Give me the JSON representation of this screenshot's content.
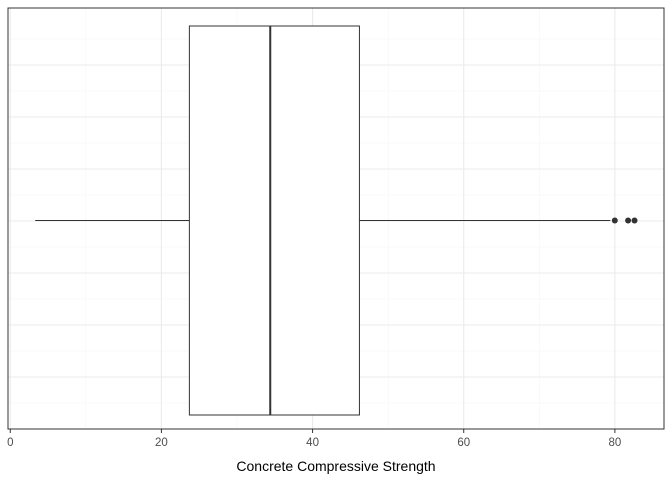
{
  "chart_data": {
    "type": "boxplot",
    "orientation": "horizontal",
    "title": "",
    "xlabel": "Concrete Compressive Strength",
    "ylabel": "",
    "xlim": [
      -0.3,
      86.5
    ],
    "x_ticks": [
      0,
      20,
      40,
      60,
      80
    ],
    "x_tick_labels": [
      "0",
      "20",
      "40",
      "60",
      "80"
    ],
    "grid": true,
    "legend": "none",
    "box": {
      "min": 3.3,
      "q1": 23.7,
      "median": 34.4,
      "q3": 46.2,
      "max": 79.4,
      "outliers": [
        79.99,
        81.75,
        82.6
      ]
    },
    "colors": {
      "panel_border": "#333333",
      "grid_major": "#ebebeb",
      "grid_minor": "#f5f5f5",
      "box_line": "#333333",
      "box_fill": "#ffffff",
      "outlier": "#333333",
      "tick_label": "#4d4d4d",
      "axis_title": "#000000"
    }
  }
}
